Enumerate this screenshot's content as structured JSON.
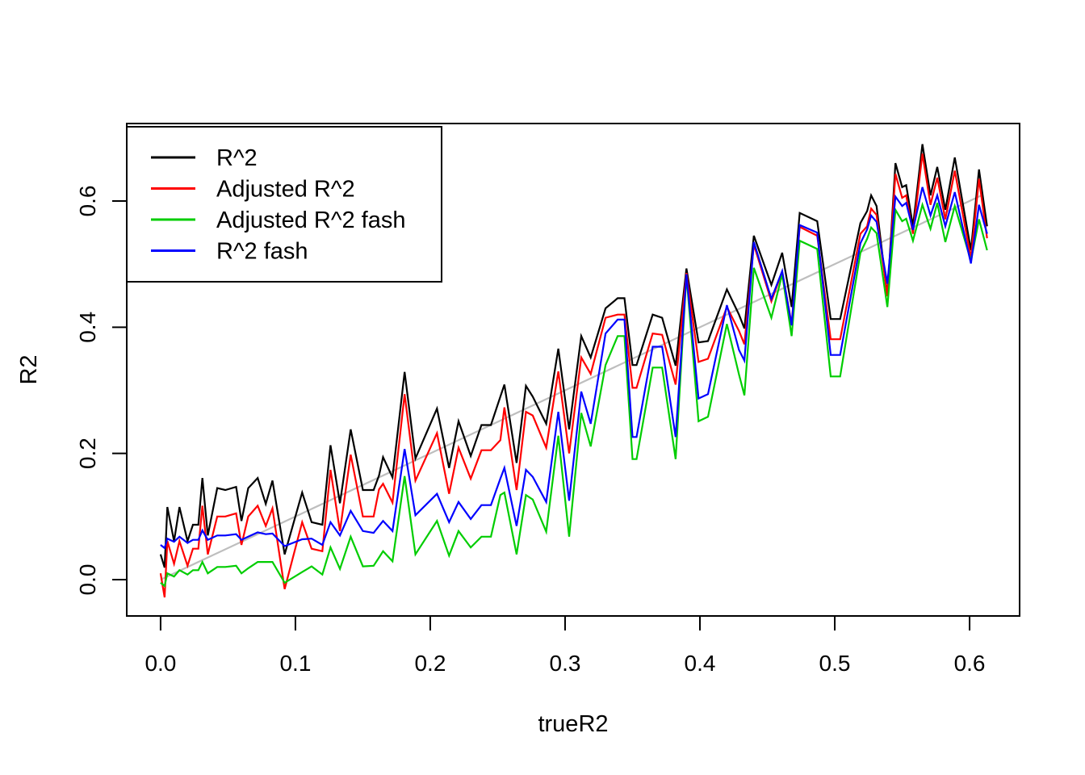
{
  "figure": {
    "background": "#ffffff",
    "text_color": "#000000"
  },
  "chart_data": {
    "type": "line",
    "title": "",
    "xlabel": "trueR2",
    "ylabel": "R2",
    "grid": false,
    "legend_position": "top-left",
    "xlim": [
      -0.0251,
      0.6371
    ],
    "ylim": [
      -0.0576,
      0.7228
    ],
    "x_ticks": [
      {
        "value": 0.0,
        "label": "0.0"
      },
      {
        "value": 0.1,
        "label": "0.1"
      },
      {
        "value": 0.2,
        "label": "0.2"
      },
      {
        "value": 0.3,
        "label": "0.3"
      },
      {
        "value": 0.4,
        "label": "0.4"
      },
      {
        "value": 0.5,
        "label": "0.5"
      },
      {
        "value": 0.6,
        "label": "0.6"
      }
    ],
    "y_ticks": [
      {
        "value": 0.0,
        "label": "0.0"
      },
      {
        "value": 0.2,
        "label": "0.2"
      },
      {
        "value": 0.4,
        "label": "0.4"
      },
      {
        "value": 0.6,
        "label": "0.6"
      }
    ],
    "reference_line": {
      "name": "identity-line",
      "color": "#bebebe",
      "from": [
        0.0,
        0.0
      ],
      "to": [
        0.61,
        0.61
      ]
    },
    "x": [
      0.0,
      0.003,
      0.005,
      0.01,
      0.014,
      0.02,
      0.024,
      0.028,
      0.031,
      0.035,
      0.042,
      0.048,
      0.056,
      0.06,
      0.065,
      0.072,
      0.078,
      0.083,
      0.092,
      0.105,
      0.112,
      0.12,
      0.126,
      0.133,
      0.141,
      0.15,
      0.158,
      0.162,
      0.165,
      0.172,
      0.181,
      0.189,
      0.205,
      0.214,
      0.221,
      0.23,
      0.238,
      0.245,
      0.252,
      0.255,
      0.264,
      0.271,
      0.276,
      0.286,
      0.295,
      0.303,
      0.312,
      0.319,
      0.33,
      0.339,
      0.344,
      0.35,
      0.353,
      0.365,
      0.372,
      0.382,
      0.39,
      0.399,
      0.406,
      0.42,
      0.429,
      0.433,
      0.44,
      0.453,
      0.461,
      0.468,
      0.474,
      0.487,
      0.497,
      0.504,
      0.519,
      0.524,
      0.527,
      0.531,
      0.539,
      0.545,
      0.55,
      0.553,
      0.558,
      0.565,
      0.571,
      0.576,
      0.582,
      0.589,
      0.601,
      0.607,
      0.613
    ],
    "series": [
      {
        "name": "R^2",
        "color": "#000000",
        "values": [
          0.04,
          0.019,
          0.115,
          0.061,
          0.115,
          0.061,
          0.087,
          0.087,
          0.161,
          0.07,
          0.145,
          0.142,
          0.147,
          0.093,
          0.145,
          0.161,
          0.12,
          0.157,
          0.04,
          0.138,
          0.091,
          0.087,
          0.213,
          0.121,
          0.238,
          0.142,
          0.142,
          0.165,
          0.194,
          0.162,
          0.329,
          0.192,
          0.271,
          0.177,
          0.251,
          0.196,
          0.245,
          0.245,
          0.29,
          0.309,
          0.185,
          0.307,
          0.29,
          0.247,
          0.366,
          0.238,
          0.386,
          0.352,
          0.43,
          0.446,
          0.446,
          0.34,
          0.34,
          0.42,
          0.415,
          0.339,
          0.493,
          0.376,
          0.378,
          0.46,
          0.42,
          0.398,
          0.545,
          0.467,
          0.518,
          0.432,
          0.581,
          0.568,
          0.413,
          0.413,
          0.565,
          0.584,
          0.609,
          0.592,
          0.45,
          0.66,
          0.622,
          0.625,
          0.56,
          0.69,
          0.609,
          0.654,
          0.586,
          0.669,
          0.522,
          0.65,
          0.56
        ]
      },
      {
        "name": "Adjusted R^2",
        "color": "#ff0000",
        "values": [
          0.01,
          -0.028,
          0.061,
          0.025,
          0.061,
          0.022,
          0.049,
          0.049,
          0.117,
          0.04,
          0.1,
          0.1,
          0.105,
          0.055,
          0.1,
          0.117,
          0.085,
          0.113,
          -0.015,
          0.091,
          0.049,
          0.045,
          0.174,
          0.077,
          0.198,
          0.1,
          0.1,
          0.143,
          0.152,
          0.122,
          0.294,
          0.157,
          0.232,
          0.136,
          0.209,
          0.16,
          0.205,
          0.205,
          0.221,
          0.273,
          0.142,
          0.266,
          0.26,
          0.209,
          0.33,
          0.2,
          0.352,
          0.326,
          0.415,
          0.42,
          0.42,
          0.304,
          0.304,
          0.39,
          0.388,
          0.309,
          0.486,
          0.345,
          0.35,
          0.432,
          0.394,
          0.373,
          0.531,
          0.441,
          0.488,
          0.405,
          0.559,
          0.545,
          0.381,
          0.381,
          0.548,
          0.56,
          0.588,
          0.578,
          0.449,
          0.643,
          0.605,
          0.609,
          0.548,
          0.675,
          0.594,
          0.637,
          0.571,
          0.648,
          0.509,
          0.635,
          0.541
        ]
      },
      {
        "name": "Adjusted R^2 fash",
        "color": "#00cd00",
        "values": [
          -0.005,
          -0.01,
          0.01,
          0.005,
          0.015,
          0.008,
          0.015,
          0.015,
          0.028,
          0.01,
          0.02,
          0.02,
          0.022,
          0.01,
          0.018,
          0.028,
          0.028,
          0.028,
          -0.005,
          0.012,
          0.021,
          0.008,
          0.051,
          0.017,
          0.068,
          0.021,
          0.022,
          0.035,
          0.045,
          0.029,
          0.164,
          0.04,
          0.093,
          0.038,
          0.077,
          0.051,
          0.068,
          0.068,
          0.134,
          0.138,
          0.04,
          0.134,
          0.127,
          0.076,
          0.228,
          0.068,
          0.264,
          0.211,
          0.34,
          0.386,
          0.386,
          0.191,
          0.191,
          0.336,
          0.336,
          0.191,
          0.482,
          0.251,
          0.258,
          0.405,
          0.325,
          0.292,
          0.494,
          0.415,
          0.484,
          0.386,
          0.537,
          0.524,
          0.322,
          0.322,
          0.518,
          0.54,
          0.558,
          0.549,
          0.432,
          0.586,
          0.568,
          0.572,
          0.537,
          0.594,
          0.556,
          0.597,
          0.535,
          0.592,
          0.505,
          0.571,
          0.522
        ]
      },
      {
        "name": "R^2 fash",
        "color": "#0000ff",
        "values": [
          0.055,
          0.05,
          0.065,
          0.06,
          0.068,
          0.058,
          0.063,
          0.063,
          0.078,
          0.063,
          0.07,
          0.07,
          0.072,
          0.063,
          0.068,
          0.075,
          0.072,
          0.073,
          0.053,
          0.064,
          0.065,
          0.055,
          0.091,
          0.07,
          0.109,
          0.077,
          0.074,
          0.085,
          0.093,
          0.077,
          0.207,
          0.102,
          0.136,
          0.091,
          0.123,
          0.096,
          0.118,
          0.118,
          0.16,
          0.177,
          0.085,
          0.174,
          0.163,
          0.123,
          0.266,
          0.125,
          0.298,
          0.247,
          0.39,
          0.412,
          0.412,
          0.226,
          0.226,
          0.369,
          0.369,
          0.226,
          0.484,
          0.287,
          0.294,
          0.435,
          0.364,
          0.347,
          0.535,
          0.445,
          0.489,
          0.403,
          0.562,
          0.55,
          0.356,
          0.356,
          0.533,
          0.555,
          0.577,
          0.567,
          0.469,
          0.607,
          0.592,
          0.597,
          0.554,
          0.622,
          0.577,
          0.609,
          0.56,
          0.614,
          0.501,
          0.594,
          0.548
        ]
      }
    ],
    "legend": {
      "entries": [
        {
          "label": "R^2",
          "color": "#000000"
        },
        {
          "label": "Adjusted R^2",
          "color": "#ff0000"
        },
        {
          "label": "Adjusted R^2 fash",
          "color": "#00cd00"
        },
        {
          "label": "R^2 fash",
          "color": "#0000ff"
        }
      ]
    }
  }
}
